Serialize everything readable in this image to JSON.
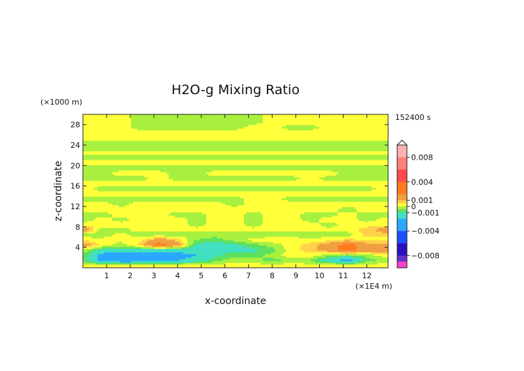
{
  "chart_data": {
    "type": "heatmap",
    "title": "H2O-g Mixing Ratio",
    "xlabel": "x-coordinate",
    "ylabel": "z-coordinate",
    "x_unit": "(×1E4 m)",
    "y_unit": "(×1000 m)",
    "time_label": "152400 s",
    "xlim": [
      0,
      12.9
    ],
    "ylim": [
      0,
      30
    ],
    "x_ticks": [
      1,
      2,
      3,
      4,
      5,
      6,
      7,
      8,
      9,
      10,
      11,
      12
    ],
    "y_ticks": [
      4,
      8,
      12,
      16,
      20,
      24,
      28
    ],
    "colorbar": {
      "min": -0.01,
      "max": 0.01,
      "tick_values": [
        0.008,
        0.004,
        0.001,
        0,
        -0.001,
        -0.004,
        -0.008
      ],
      "tick_labels": [
        "0.008",
        "0.004",
        "0.001",
        "0",
        "−0.001",
        "−0.004",
        "−0.008"
      ],
      "colors": [
        {
          "lo": 0.008,
          "hi": 0.01,
          "color": "#ffb0b0"
        },
        {
          "lo": 0.006,
          "hi": 0.008,
          "color": "#ff7f7f"
        },
        {
          "lo": 0.004,
          "hi": 0.006,
          "color": "#ff4a4a"
        },
        {
          "lo": 0.002,
          "hi": 0.004,
          "color": "#ff7a1e"
        },
        {
          "lo": 0.001,
          "hi": 0.002,
          "color": "#f0a040"
        },
        {
          "lo": 0.0005,
          "hi": 0.001,
          "color": "#ffd24a"
        },
        {
          "lo": 0,
          "hi": 0.0005,
          "color": "#ffff3a"
        },
        {
          "lo": -0.0005,
          "hi": 0,
          "color": "#a8f040"
        },
        {
          "lo": -0.001,
          "hi": -0.0005,
          "color": "#5ce060"
        },
        {
          "lo": -0.002,
          "hi": -0.001,
          "color": "#40e0c0"
        },
        {
          "lo": -0.004,
          "hi": -0.002,
          "color": "#2aa8ff"
        },
        {
          "lo": -0.006,
          "hi": -0.004,
          "color": "#1e50ff"
        },
        {
          "lo": -0.008,
          "hi": -0.006,
          "color": "#2a10c0"
        },
        {
          "lo": -0.009,
          "hi": -0.008,
          "color": "#6a30c8"
        },
        {
          "lo": -0.01,
          "hi": -0.009,
          "color": "#ff40c8"
        }
      ]
    },
    "field": {
      "x_centers": [
        0.1,
        0.8,
        1.6,
        2.4,
        3.2,
        4.0,
        4.8,
        5.6,
        6.4,
        7.2,
        8.0,
        8.8,
        9.6,
        10.4,
        11.2,
        12.0,
        12.8
      ],
      "z_centers": [
        0.5,
        1.5,
        2.5,
        3.5,
        4.5,
        5.5,
        6.5,
        7.5,
        8.5,
        9.5,
        10.5,
        11.5,
        12.5,
        13.5,
        14.5,
        15.5,
        16.5,
        17.5,
        18.5,
        19.5,
        20.5,
        21.5,
        22.5,
        23.5,
        24.5,
        25.5,
        26.5,
        27.5,
        28.5,
        29.5
      ],
      "values": [
        [
          0.0003,
          0.0002,
          0.0002,
          0.0003,
          0.0002,
          0.0002,
          0.0003,
          0.0002,
          0.0003,
          0.0003,
          0.0002,
          0.0003,
          0.0002,
          0.0002,
          0.0003,
          0.0002,
          0.0003
        ],
        [
          -0.0008,
          -0.0025,
          -0.003,
          -0.003,
          -0.0025,
          -0.002,
          -0.0015,
          -0.0007,
          -0.0002,
          -0.0003,
          -0.0007,
          -0.0003,
          -0.0005,
          -0.0015,
          -0.0025,
          -0.0007,
          -0.0003
        ],
        [
          -0.0007,
          -0.0025,
          -0.003,
          -0.003,
          -0.003,
          -0.0025,
          -0.002,
          -0.0012,
          -0.0007,
          -0.0007,
          -0.0003,
          0.0003,
          0.0003,
          -0.0003,
          -0.0007,
          -0.0003,
          0.0003
        ],
        [
          -0.0003,
          -0.0012,
          -0.0012,
          -0.0015,
          -0.0015,
          -0.0015,
          -0.0015,
          -0.0012,
          -0.0012,
          -0.0012,
          -0.0007,
          0.0003,
          0.0007,
          0.0015,
          0.0025,
          0.0015,
          0.0015
        ],
        [
          0.0015,
          0.0003,
          -0.0003,
          0.0007,
          0.0025,
          0.0015,
          -0.0012,
          -0.0015,
          -0.0012,
          -0.0007,
          -0.0003,
          0.0003,
          0.0007,
          0.0015,
          0.0025,
          0.0015,
          0.0015
        ],
        [
          0.0003,
          0.0002,
          0.0002,
          0.0003,
          0.0015,
          0.0007,
          -0.0005,
          -0.0007,
          -0.0003,
          0.0002,
          0.0003,
          0.0003,
          0.0002,
          0.0003,
          0.0007,
          0.0003,
          0.0003
        ],
        [
          -0.0003,
          -0.0003,
          0.0002,
          -0.0003,
          -0.0003,
          -0.0003,
          -0.0003,
          -0.0003,
          -0.0003,
          -0.0003,
          -0.0003,
          -0.0003,
          -0.0003,
          -0.0003,
          -0.0003,
          0.0007,
          0.0007
        ],
        [
          0.0015,
          -0.0003,
          -0.0003,
          0.0003,
          0.0003,
          0.0003,
          0.0003,
          0.0002,
          0.0003,
          0.0003,
          0.0002,
          0.0003,
          0.0003,
          0.0002,
          0.0003,
          0.0007,
          0.0015
        ],
        [
          0.0003,
          0.0003,
          0.0003,
          0.0003,
          0.0003,
          0.0003,
          -0.0003,
          0.0003,
          0.0003,
          -0.0003,
          0.0003,
          0.0003,
          0.0003,
          -0.0003,
          0.0003,
          0.0003,
          0.0003
        ],
        [
          -0.0003,
          0.0003,
          -0.0003,
          0.0003,
          0.0003,
          0.0003,
          -0.0003,
          0.0003,
          0.0003,
          -0.0003,
          0.0003,
          0.0003,
          -0.0003,
          0.0003,
          0.0003,
          -0.0003,
          0.0003
        ],
        [
          -0.0003,
          -0.0003,
          0.0003,
          0.0003,
          0.0003,
          -0.0003,
          -0.0003,
          0.0003,
          0.0003,
          -0.0003,
          0.0003,
          0.0003,
          -0.0003,
          -0.0003,
          0.0003,
          -0.0003,
          -0.0003
        ],
        [
          0.0003,
          0.0003,
          0.0003,
          0.0003,
          0.0003,
          0.0003,
          0.0003,
          0.0003,
          0.0003,
          0.0003,
          0.0003,
          0.0003,
          0.0003,
          0.0003,
          -0.0003,
          0.0003,
          0.0003
        ],
        [
          0.0003,
          0.0003,
          -0.0003,
          0.0003,
          0.0003,
          0.0003,
          0.0003,
          0.0003,
          -0.0003,
          0.0003,
          0.0003,
          0.0003,
          0.0003,
          0.0003,
          0.0003,
          0.0003,
          0.0003
        ],
        [
          -0.0003,
          -0.0003,
          -0.0003,
          -0.0003,
          -0.0003,
          -0.0003,
          -0.0003,
          -0.0003,
          -0.0003,
          0.0003,
          0.0003,
          -0.0003,
          -0.0003,
          -0.0003,
          -0.0003,
          -0.0003,
          -0.0003
        ],
        [
          0.0003,
          0.0003,
          0.0003,
          0.0003,
          0.0003,
          0.0003,
          0.0003,
          0.0003,
          0.0003,
          0.0003,
          0.0003,
          0.0003,
          0.0003,
          0.0003,
          0.0003,
          0.0003,
          0.0003
        ],
        [
          0.0003,
          -0.0003,
          -0.0003,
          -0.0003,
          -0.0003,
          -0.0003,
          -0.0003,
          -0.0003,
          -0.0003,
          -0.0003,
          -0.0003,
          -0.0003,
          -0.0003,
          -0.0003,
          -0.0003,
          -0.0003,
          0.0003
        ],
        [
          0.0003,
          0.0003,
          0.0003,
          0.0003,
          0.0003,
          0.0003,
          0.0003,
          0.0003,
          0.0003,
          0.0003,
          0.0003,
          0.0003,
          0.0003,
          0.0003,
          0.0003,
          0.0003,
          0.0003
        ],
        [
          -0.0003,
          -0.0003,
          -0.0003,
          -0.0003,
          0.0003,
          -0.0003,
          -0.0003,
          -0.0003,
          -0.0003,
          -0.0003,
          -0.0003,
          -0.0003,
          0.0003,
          -0.0003,
          -0.0003,
          -0.0003,
          -0.0003
        ],
        [
          -0.0003,
          -0.0003,
          0.0003,
          0.0003,
          0.0003,
          -0.0003,
          -0.0003,
          0.0003,
          0.0003,
          0.0003,
          0.0003,
          0.0003,
          0.0003,
          0.0003,
          -0.0003,
          -0.0003,
          -0.0003
        ],
        [
          -0.0003,
          -0.0003,
          -0.0003,
          -0.0003,
          -0.0003,
          -0.0003,
          -0.0003,
          -0.0003,
          -0.0003,
          -0.0003,
          -0.0003,
          -0.0003,
          -0.0003,
          -0.0003,
          -0.0003,
          -0.0003,
          -0.0003
        ],
        [
          0.0003,
          0.0003,
          0.0003,
          0.0003,
          0.0003,
          0.0003,
          0.0003,
          0.0003,
          0.0003,
          0.0003,
          0.0003,
          0.0003,
          0.0003,
          0.0003,
          0.0003,
          0.0003,
          0.0003
        ],
        [
          -0.0003,
          -0.0003,
          -0.0003,
          -0.0003,
          -0.0003,
          -0.0003,
          -0.0003,
          -0.0003,
          -0.0003,
          -0.0003,
          -0.0003,
          -0.0003,
          -0.0003,
          -0.0003,
          -0.0003,
          -0.0003,
          -0.0003
        ],
        [
          0.0003,
          0.0003,
          0.0003,
          0.0003,
          0.0003,
          0.0003,
          0.0003,
          0.0003,
          0.0003,
          0.0003,
          0.0003,
          0.0003,
          0.0003,
          0.0003,
          0.0003,
          0.0003,
          0.0003
        ],
        [
          -0.0003,
          -0.0003,
          -0.0003,
          -0.0003,
          -0.0003,
          -0.0003,
          -0.0003,
          -0.0003,
          -0.0003,
          -0.0003,
          -0.0003,
          -0.0003,
          -0.0003,
          -0.0003,
          -0.0003,
          -0.0003,
          -0.0003
        ],
        [
          -0.0003,
          -0.0003,
          -0.0003,
          -0.0003,
          -0.0003,
          -0.0003,
          -0.0003,
          -0.0003,
          -0.0003,
          -0.0003,
          -0.0003,
          -0.0003,
          -0.0003,
          -0.0003,
          -0.0003,
          -0.0003,
          -0.0003
        ],
        [
          0.0003,
          0.0003,
          0.0003,
          0.0003,
          0.0003,
          0.0003,
          0.0003,
          0.0003,
          0.0003,
          0.0003,
          0.0003,
          0.0003,
          0.0003,
          0.0003,
          0.0003,
          0.0003,
          0.0003
        ],
        [
          0.0003,
          0.0003,
          0.0003,
          0.0003,
          0.0003,
          0.0003,
          0.0003,
          0.0003,
          0.0003,
          0.0003,
          0.0003,
          0.0003,
          0.0003,
          0.0003,
          0.0003,
          0.0003,
          0.0003
        ],
        [
          0.0003,
          0.0003,
          0.0003,
          -0.0003,
          -0.0003,
          -0.0003,
          -0.0003,
          -0.0003,
          -0.0003,
          0.0003,
          0.0003,
          -0.0003,
          -0.0003,
          0.0003,
          0.0003,
          0.0003,
          0.0003
        ],
        [
          0.0003,
          0.0003,
          0.0003,
          -0.0003,
          -0.0003,
          -0.0003,
          -0.0003,
          -0.0003,
          -0.0003,
          -0.0003,
          0.0003,
          0.0003,
          0.0003,
          0.0003,
          0.0003,
          0.0003,
          0.0003
        ],
        [
          0.0003,
          0.0003,
          0.0003,
          -0.0003,
          -0.0003,
          -0.0003,
          -0.0003,
          -0.0003,
          -0.0003,
          -0.0003,
          0.0003,
          0.0003,
          0.0003,
          0.0003,
          0.0003,
          0.0003,
          0.0003
        ]
      ]
    }
  }
}
